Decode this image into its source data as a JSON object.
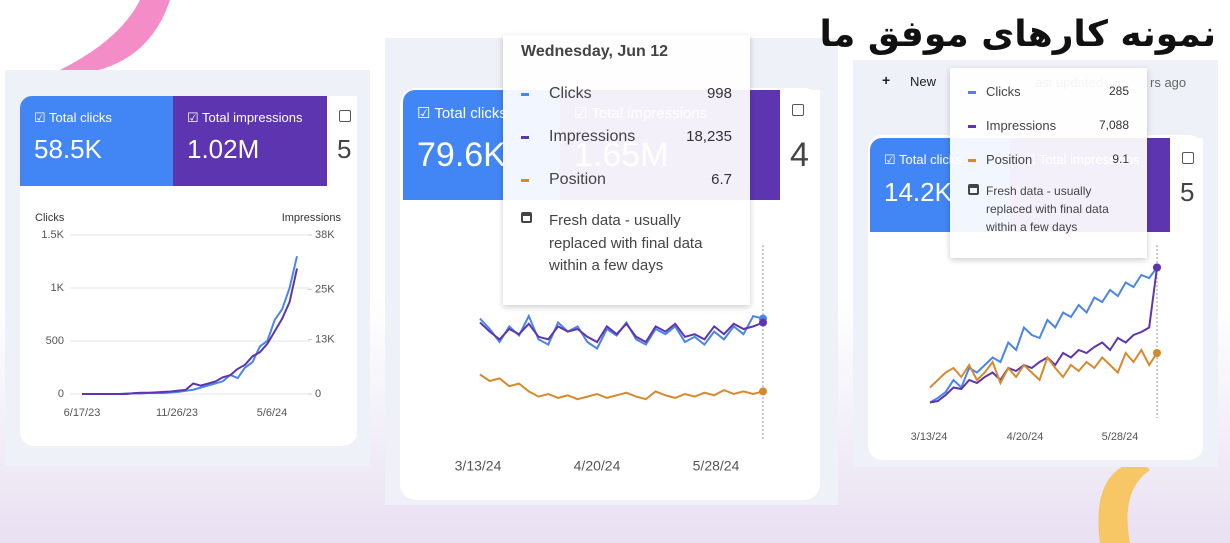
{
  "title": "نمونه کارهای موفق ما",
  "panels": [
    {
      "cards": [
        {
          "label": "Total clicks",
          "value": "58.5K"
        },
        {
          "label": "Total impressions",
          "value": "1.02M"
        },
        {
          "value": "5"
        }
      ],
      "chart": {
        "left_label": "Clicks",
        "right_label": "Impressions",
        "ylim": [
          0,
          1500
        ],
        "yticks": [
          {
            "value": 1500,
            "label": "1.5K"
          },
          {
            "value": 1000,
            "label": "1K"
          },
          500,
          0
        ],
        "y2lim": [
          0,
          38000
        ],
        "y2ticks": [
          {
            "value": 38000,
            "label": "38K"
          },
          {
            "value": 25000,
            "label": "25K"
          },
          {
            "value": 13000,
            "label": "13K"
          },
          0
        ],
        "x_labels": [
          "6/17/23",
          "11/26/23",
          "5/6/24"
        ],
        "series": [
          {
            "name": "Clicks",
            "color": "#4a86e8",
            "values": [
              0,
              0,
              0,
              0,
              0,
              0,
              5,
              5,
              5,
              10,
              10,
              10,
              15,
              20,
              30,
              40,
              60,
              80,
              100,
              120,
              180,
              150,
              250,
              300,
              450,
              500,
              700,
              800,
              1000,
              1300
            ]
          },
          {
            "name": "Impressions",
            "color": "#5e35b1",
            "axis": "y2",
            "values": [
              0,
              0,
              0,
              0,
              0,
              0,
              0,
              200,
              300,
              300,
              400,
              500,
              600,
              800,
              1000,
              2500,
              2000,
              2500,
              3000,
              4000,
              4500,
              6000,
              7000,
              9000,
              10000,
              12000,
              15000,
              18000,
              22000,
              30000
            ]
          }
        ]
      }
    },
    {
      "cards": [
        {
          "label": "Total clicks",
          "value": "79.6K"
        },
        {
          "label": "Total impressions",
          "value": "1.65M"
        },
        {
          "value": "4"
        }
      ],
      "tooltip": {
        "date": "Wednesday, Jun 12",
        "values": [
          "998",
          "18,235",
          "6.7"
        ],
        "note": "Fresh data - usually replaced with final data within a few days"
      },
      "chart": {
        "ylim": [
          0,
          100
        ],
        "x_labels": [
          "3/13/24",
          "4/20/24",
          "5/28/24"
        ],
        "series": [
          {
            "name": "Clicks",
            "color": "#4a86e8",
            "values": [
              78,
              70,
              60,
              72,
              65,
              80,
              62,
              58,
              75,
              68,
              72,
              60,
              55,
              70,
              65,
              75,
              62,
              58,
              70,
              66,
              72,
              60,
              64,
              58,
              68,
              62,
              72,
              66,
              80,
              78
            ]
          },
          {
            "name": "Impressions",
            "color": "#5e35b1",
            "values": [
              75,
              68,
              62,
              70,
              66,
              74,
              64,
              62,
              72,
              68,
              70,
              64,
              60,
              72,
              66,
              74,
              64,
              60,
              72,
              68,
              74,
              64,
              66,
              62,
              72,
              66,
              74,
              70,
              72,
              75
            ]
          },
          {
            "name": "Position",
            "color": "#d68a2e",
            "values": [
              35,
              30,
              32,
              26,
              28,
              22,
              18,
              20,
              17,
              19,
              16,
              18,
              20,
              17,
              19,
              21,
              18,
              16,
              22,
              19,
              17,
              20,
              18,
              21,
              19,
              23,
              20,
              22,
              20,
              22
            ]
          }
        ]
      }
    },
    {
      "header": {
        "new": "New",
        "updated": "ast updated",
        "ago": "rs ago"
      },
      "cards": [
        {
          "label": "Total clicks",
          "value": "14.2K"
        },
        {
          "label": "Total impressions",
          "value": ""
        },
        {
          "value": "5"
        }
      ],
      "tooltip": {
        "values": [
          "285",
          "7,088",
          "9.1"
        ],
        "note": "Fresh data - usually replaced with final data within a few days"
      },
      "chart": {
        "ylim": [
          0,
          100
        ],
        "x_labels": [
          "3/13/24",
          "4/20/24",
          "5/28/24"
        ],
        "series": [
          {
            "name": "Clicks",
            "color": "#4a86e8",
            "values": [
              5,
              8,
              12,
              20,
              15,
              28,
              25,
              30,
              35,
              32,
              45,
              40,
              55,
              50,
              48,
              60,
              55,
              65,
              62,
              70,
              65,
              75,
              72,
              80,
              76,
              85,
              82,
              90,
              88,
              95
            ]
          },
          {
            "name": "Impressions",
            "color": "#5e35b1",
            "values": [
              5,
              6,
              10,
              15,
              14,
              20,
              18,
              22,
              25,
              20,
              28,
              26,
              30,
              28,
              32,
              35,
              30,
              38,
              35,
              40,
              38,
              42,
              45,
              40,
              48,
              45,
              50,
              52,
              55,
              95
            ]
          },
          {
            "name": "Position",
            "color": "#d68a2e",
            "values": [
              15,
              20,
              25,
              28,
              22,
              30,
              20,
              25,
              32,
              18,
              28,
              22,
              30,
              25,
              20,
              35,
              28,
              22,
              30,
              26,
              32,
              28,
              35,
              30,
              25,
              38,
              32,
              40,
              30,
              38
            ]
          }
        ]
      }
    }
  ]
}
